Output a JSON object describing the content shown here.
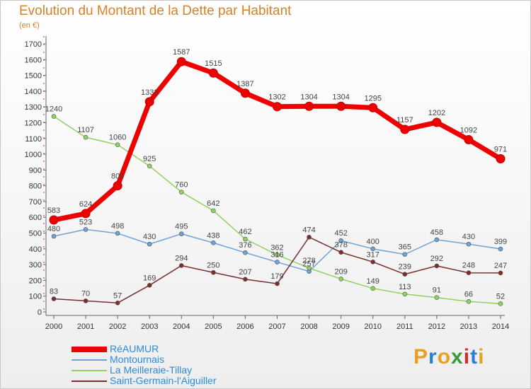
{
  "header": {
    "title": "Evolution du Montant de la Dette par Habitant",
    "subtitle": "(en €)"
  },
  "logo": {
    "letters": [
      "P",
      "r",
      "o",
      "x",
      "i",
      "t",
      "i"
    ],
    "colors": [
      "#e8a020",
      "#2a7fd4",
      "#e8a020",
      "#3a9a3a",
      "#d42a2a",
      "#2a7fd4",
      "#e8a020"
    ]
  },
  "chart_data": {
    "type": "line",
    "title": "Evolution du Montant de la Dette par Habitant",
    "subtitle": "(en €)",
    "xlabel": "",
    "ylabel": "",
    "x": [
      2000,
      2001,
      2002,
      2003,
      2004,
      2005,
      2006,
      2007,
      2008,
      2009,
      2010,
      2011,
      2012,
      2013,
      2014
    ],
    "ylim": [
      0,
      1700
    ],
    "yticks": [
      0,
      100,
      200,
      300,
      400,
      500,
      600,
      700,
      800,
      900,
      1000,
      1100,
      1200,
      1300,
      1400,
      1500,
      1600,
      1700
    ],
    "grid": false,
    "legend_position": "bottom-left",
    "series": [
      {
        "name": "RéAUMUR",
        "color": "#ee0000",
        "emphasis": true,
        "values": [
          583,
          624,
          800,
          1333,
          1587,
          1515,
          1387,
          1302,
          1304,
          1304,
          1295,
          1157,
          1202,
          1092,
          971
        ],
        "labels": [
          "583",
          "624",
          "800",
          "1333",
          "1587",
          "1515",
          "1387",
          "1302",
          "1304",
          "1304",
          "1295",
          "1157",
          "1202",
          "1092",
          "971"
        ]
      },
      {
        "name": "Montournais",
        "color": "#6fa3d6",
        "values": [
          480,
          523,
          498,
          430,
          495,
          438,
          376,
          316,
          257,
          452,
          400,
          365,
          458,
          430,
          399
        ],
        "labels": [
          "480",
          "523",
          "498",
          "430",
          "495",
          "438",
          "376",
          "316",
          "257",
          "452",
          "400",
          "365",
          "458",
          "430",
          "399"
        ]
      },
      {
        "name": "La Meilleraie-Tillay",
        "color": "#8fd15e",
        "values": [
          1240,
          1107,
          1060,
          925,
          760,
          642,
          462,
          362,
          278,
          209,
          149,
          113,
          91,
          66,
          52
        ],
        "labels": [
          "1240",
          "1107",
          "1060",
          "925",
          "760",
          "642",
          "462",
          "362",
          "278",
          "209",
          "149",
          "113",
          "91",
          "66",
          "52"
        ]
      },
      {
        "name": "Saint-Germain-l'Aiguiller",
        "color": "#7a2e2e",
        "values": [
          83,
          70,
          57,
          169,
          294,
          250,
          207,
          179,
          474,
          378,
          317,
          239,
          292,
          248,
          247
        ],
        "labels": [
          "83",
          "70",
          "57",
          "169",
          "294",
          "250",
          "207",
          "179",
          "474",
          "378",
          "317",
          "239",
          "292",
          "248",
          "247"
        ]
      }
    ]
  }
}
